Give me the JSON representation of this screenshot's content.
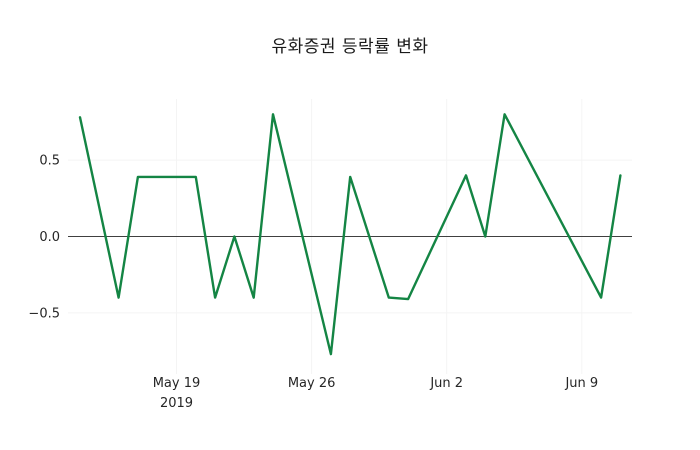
{
  "chart_data": {
    "type": "line",
    "title": "유화증권 등락률 변화",
    "xlabel": "",
    "ylabel": "",
    "x_unit": "date (2019)",
    "xlim_day_offsets": [
      -0.62,
      28.6
    ],
    "ylim": [
      -0.9,
      0.9
    ],
    "grid": "off (only faint), horizontal zero reference line shown",
    "legend": "none",
    "colors": {
      "line": "#148544",
      "zero_line": "#404040",
      "grid": "#f4f4f4",
      "text": "#262626",
      "background": "#ffffff"
    },
    "series": [
      {
        "name": "등락률",
        "color": "#148544",
        "points": [
          {
            "date": "May 14",
            "d": 0,
            "y": 0.78
          },
          {
            "date": "May 16",
            "d": 2,
            "y": -0.4
          },
          {
            "date": "May 17",
            "d": 3,
            "y": 0.39
          },
          {
            "date": "May 20",
            "d": 6,
            "y": 0.39
          },
          {
            "date": "May 21",
            "d": 7,
            "y": -0.4
          },
          {
            "date": "May 22",
            "d": 8,
            "y": 0.0
          },
          {
            "date": "May 23",
            "d": 9,
            "y": -0.4
          },
          {
            "date": "May 24",
            "d": 10,
            "y": 0.8
          },
          {
            "date": "May 27",
            "d": 13,
            "y": -0.77
          },
          {
            "date": "May 28",
            "d": 14,
            "y": 0.39
          },
          {
            "date": "May 30",
            "d": 16,
            "y": -0.4
          },
          {
            "date": "May 31",
            "d": 17,
            "y": -0.41
          },
          {
            "date": "Jun 3",
            "d": 20,
            "y": 0.4
          },
          {
            "date": "Jun 4",
            "d": 21,
            "y": 0.0
          },
          {
            "date": "Jun 5",
            "d": 22,
            "y": 0.8
          },
          {
            "date": "Jun 10",
            "d": 27,
            "y": -0.4
          },
          {
            "date": "Jun 11",
            "d": 28,
            "y": 0.4
          }
        ]
      }
    ],
    "xticks": [
      {
        "d": 5,
        "label": "May 19",
        "sub": "2019"
      },
      {
        "d": 12,
        "label": "May 26"
      },
      {
        "d": 19,
        "label": "Jun 2"
      },
      {
        "d": 26,
        "label": "Jun 9"
      }
    ],
    "yticks": [
      {
        "v": 0.5,
        "label": "0.5"
      },
      {
        "v": 0.0,
        "label": "0.0"
      },
      {
        "v": -0.5,
        "label": "−0.5"
      }
    ]
  }
}
